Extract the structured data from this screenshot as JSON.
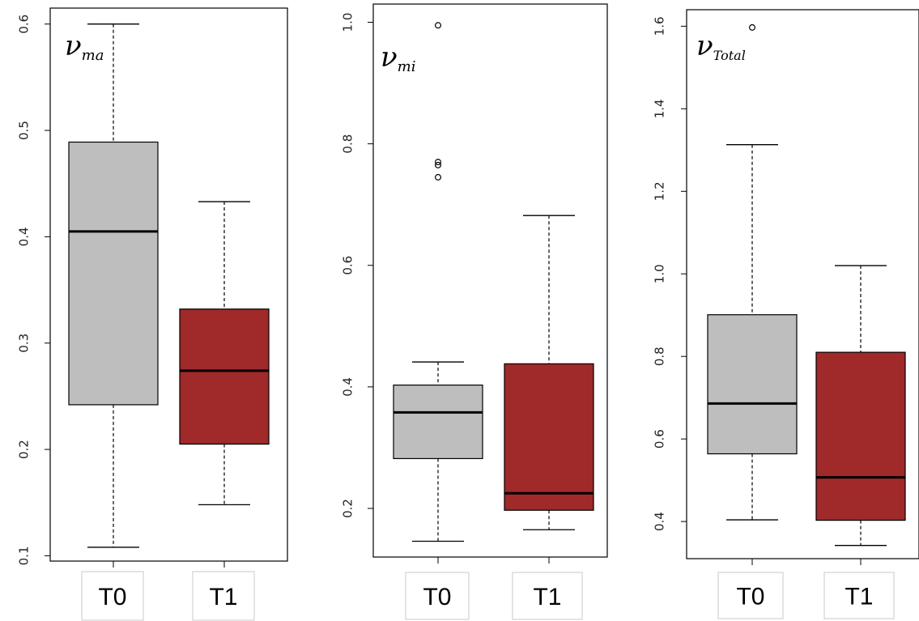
{
  "chart_data": [
    {
      "type": "boxplot",
      "title": "ν",
      "title_sub": "ma",
      "categories": [
        "T0",
        "T1"
      ],
      "ylim": [
        0.095,
        0.615
      ],
      "yticks": [
        "0.1",
        "0.2",
        "0.3",
        "0.4",
        "0.5",
        "0.6"
      ],
      "ytick_values": [
        0.1,
        0.2,
        0.3,
        0.4,
        0.5,
        0.6
      ],
      "boxes": [
        {
          "name": "T0",
          "color": "#bebebe",
          "min": 0.108,
          "q1": 0.242,
          "median": 0.405,
          "q3": 0.489,
          "max": 0.6,
          "outliers": []
        },
        {
          "name": "T1",
          "color": "#a0292a",
          "min": 0.148,
          "q1": 0.205,
          "median": 0.274,
          "q3": 0.332,
          "max": 0.433,
          "outliers": []
        }
      ]
    },
    {
      "type": "boxplot",
      "title": "ν",
      "title_sub": "mi",
      "categories": [
        "T0",
        "T1"
      ],
      "ylim": [
        0.12,
        1.03
      ],
      "yticks": [
        "0.2",
        "0.4",
        "0.6",
        "0.8",
        "1.0"
      ],
      "ytick_values": [
        0.2,
        0.4,
        0.6,
        0.8,
        1.0
      ],
      "boxes": [
        {
          "name": "T0",
          "color": "#bebebe",
          "min": 0.146,
          "q1": 0.282,
          "median": 0.358,
          "q3": 0.403,
          "max": 0.441,
          "outliers": [
            0.745,
            0.765,
            0.77,
            0.995
          ]
        },
        {
          "name": "T1",
          "color": "#a0292a",
          "min": 0.165,
          "q1": 0.197,
          "median": 0.225,
          "q3": 0.438,
          "max": 0.682,
          "outliers": []
        }
      ]
    },
    {
      "type": "boxplot",
      "title": "ν",
      "title_sub": "Total",
      "categories": [
        "T0",
        "T1"
      ],
      "ylim": [
        0.31,
        1.64
      ],
      "yticks": [
        "0.4",
        "0.6",
        "0.8",
        "1.0",
        "1.2",
        "1.4",
        "1.6"
      ],
      "ytick_values": [
        0.4,
        0.6,
        0.8,
        1.0,
        1.2,
        1.4,
        1.6
      ],
      "boxes": [
        {
          "name": "T0",
          "color": "#bebebe",
          "min": 0.404,
          "q1": 0.564,
          "median": 0.686,
          "q3": 0.901,
          "max": 1.313,
          "outliers": [
            1.597
          ]
        },
        {
          "name": "T1",
          "color": "#a0292a",
          "min": 0.342,
          "q1": 0.403,
          "median": 0.507,
          "q3": 0.81,
          "max": 1.02,
          "outliers": []
        }
      ]
    }
  ]
}
